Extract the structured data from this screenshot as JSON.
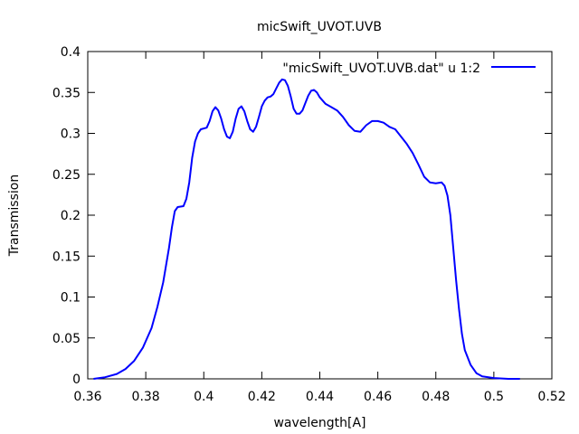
{
  "chart_data": {
    "type": "line",
    "title": "micSwift_UVOT.UVB",
    "xlabel": "wavelength[A]",
    "ylabel": "Transmission",
    "xlim": [
      0.36,
      0.52
    ],
    "ylim": [
      0,
      0.4
    ],
    "x_ticks": [
      "0.36",
      "0.38",
      "0.4",
      "0.42",
      "0.44",
      "0.46",
      "0.48",
      "0.5",
      "0.52"
    ],
    "y_ticks": [
      "0",
      "0.05",
      "0.1",
      "0.15",
      "0.2",
      "0.25",
      "0.3",
      "0.35",
      "0.4"
    ],
    "grid": false,
    "legend_position": "top-right",
    "series": [
      {
        "name": "\"micSwift_UVOT.UVB.dat\" u 1:2",
        "color": "#0000ff",
        "points": [
          [
            0.362,
            0.0
          ],
          [
            0.366,
            0.002
          ],
          [
            0.37,
            0.006
          ],
          [
            0.373,
            0.012
          ],
          [
            0.376,
            0.022
          ],
          [
            0.379,
            0.038
          ],
          [
            0.382,
            0.062
          ],
          [
            0.384,
            0.088
          ],
          [
            0.386,
            0.118
          ],
          [
            0.388,
            0.16
          ],
          [
            0.389,
            0.185
          ],
          [
            0.39,
            0.205
          ],
          [
            0.391,
            0.21
          ],
          [
            0.393,
            0.211
          ],
          [
            0.394,
            0.22
          ],
          [
            0.395,
            0.24
          ],
          [
            0.396,
            0.27
          ],
          [
            0.397,
            0.29
          ],
          [
            0.398,
            0.3
          ],
          [
            0.399,
            0.305
          ],
          [
            0.401,
            0.307
          ],
          [
            0.402,
            0.315
          ],
          [
            0.403,
            0.327
          ],
          [
            0.404,
            0.332
          ],
          [
            0.405,
            0.328
          ],
          [
            0.406,
            0.318
          ],
          [
            0.407,
            0.305
          ],
          [
            0.408,
            0.296
          ],
          [
            0.409,
            0.294
          ],
          [
            0.41,
            0.302
          ],
          [
            0.411,
            0.318
          ],
          [
            0.412,
            0.33
          ],
          [
            0.413,
            0.333
          ],
          [
            0.414,
            0.327
          ],
          [
            0.415,
            0.315
          ],
          [
            0.416,
            0.305
          ],
          [
            0.417,
            0.302
          ],
          [
            0.418,
            0.308
          ],
          [
            0.419,
            0.32
          ],
          [
            0.42,
            0.333
          ],
          [
            0.421,
            0.34
          ],
          [
            0.422,
            0.344
          ],
          [
            0.423,
            0.345
          ],
          [
            0.424,
            0.348
          ],
          [
            0.425,
            0.355
          ],
          [
            0.426,
            0.362
          ],
          [
            0.427,
            0.366
          ],
          [
            0.428,
            0.365
          ],
          [
            0.429,
            0.358
          ],
          [
            0.43,
            0.345
          ],
          [
            0.431,
            0.33
          ],
          [
            0.432,
            0.324
          ],
          [
            0.433,
            0.324
          ],
          [
            0.434,
            0.328
          ],
          [
            0.435,
            0.337
          ],
          [
            0.436,
            0.346
          ],
          [
            0.437,
            0.352
          ],
          [
            0.438,
            0.353
          ],
          [
            0.439,
            0.35
          ],
          [
            0.44,
            0.344
          ],
          [
            0.442,
            0.336
          ],
          [
            0.444,
            0.332
          ],
          [
            0.446,
            0.328
          ],
          [
            0.448,
            0.32
          ],
          [
            0.45,
            0.31
          ],
          [
            0.452,
            0.303
          ],
          [
            0.454,
            0.302
          ],
          [
            0.456,
            0.31
          ],
          [
            0.458,
            0.315
          ],
          [
            0.46,
            0.315
          ],
          [
            0.462,
            0.313
          ],
          [
            0.464,
            0.308
          ],
          [
            0.466,
            0.305
          ],
          [
            0.468,
            0.296
          ],
          [
            0.47,
            0.287
          ],
          [
            0.472,
            0.276
          ],
          [
            0.474,
            0.262
          ],
          [
            0.476,
            0.247
          ],
          [
            0.478,
            0.24
          ],
          [
            0.48,
            0.239
          ],
          [
            0.482,
            0.24
          ],
          [
            0.483,
            0.236
          ],
          [
            0.484,
            0.224
          ],
          [
            0.485,
            0.2
          ],
          [
            0.486,
            0.16
          ],
          [
            0.487,
            0.12
          ],
          [
            0.488,
            0.085
          ],
          [
            0.489,
            0.055
          ],
          [
            0.49,
            0.035
          ],
          [
            0.492,
            0.017
          ],
          [
            0.494,
            0.007
          ],
          [
            0.496,
            0.003
          ],
          [
            0.5,
            0.001
          ],
          [
            0.505,
            0.0
          ],
          [
            0.509,
            0.0
          ]
        ]
      }
    ]
  }
}
